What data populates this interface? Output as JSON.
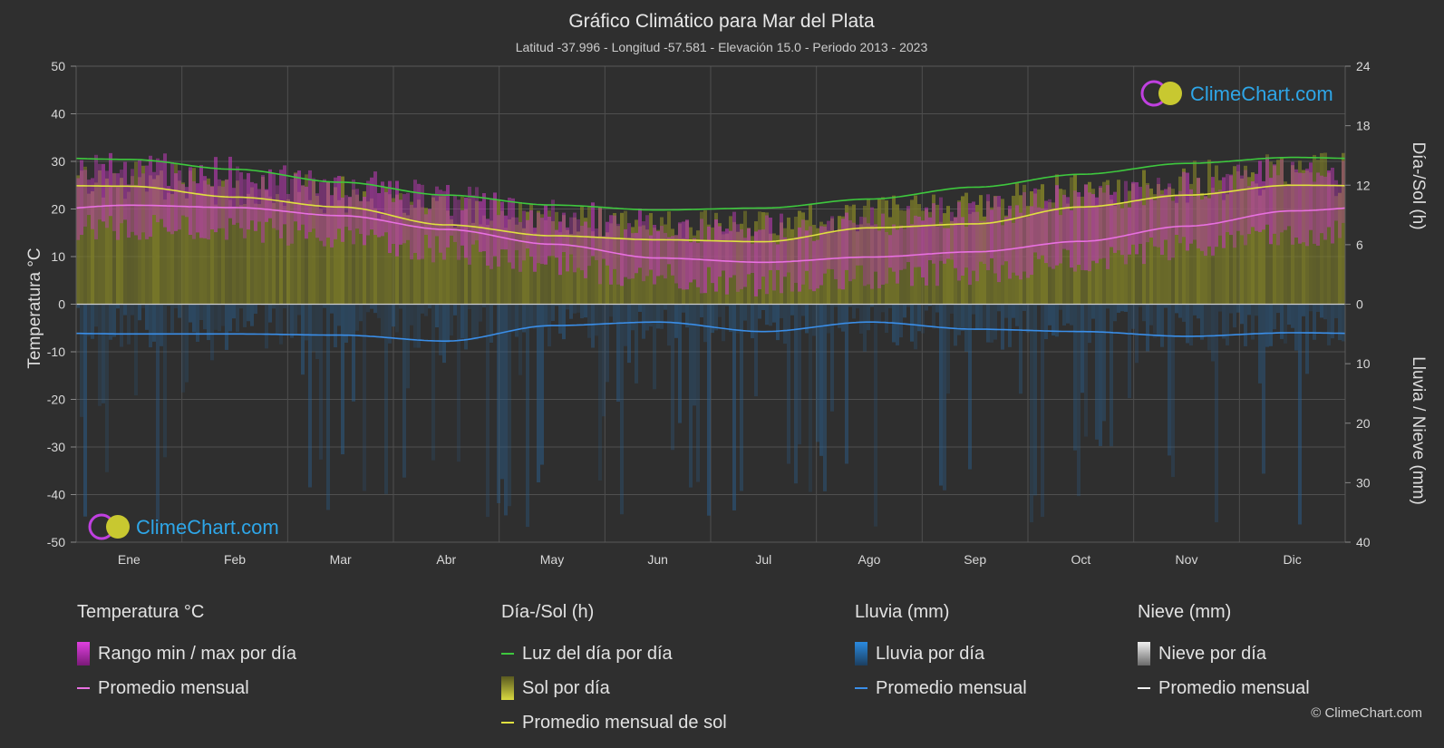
{
  "chart_data": {
    "type": "area",
    "title": "Gráfico Climático para Mar del Plata",
    "subtitle": "Latitud -37.996 - Longitud -57.581 - Elevación 15.0 - Periodo 2013 - 2023",
    "months": [
      "Ene",
      "Feb",
      "Mar",
      "Abr",
      "May",
      "Jun",
      "Jul",
      "Ago",
      "Sep",
      "Oct",
      "Nov",
      "Dic"
    ],
    "y_left": {
      "label": "Temperatura °C",
      "range": [
        -50,
        50
      ],
      "ticks": [
        50,
        40,
        30,
        20,
        10,
        0,
        -10,
        -20,
        -30,
        -40,
        -50
      ]
    },
    "y_right_top": {
      "label": "Día-/Sol (h)",
      "range": [
        0,
        24
      ],
      "ticks": [
        24,
        18,
        12,
        6,
        0
      ]
    },
    "y_right_bottom": {
      "label": "Lluvia / Nieve (mm)",
      "range": [
        0,
        40
      ],
      "ticks": [
        0,
        10,
        20,
        30,
        40
      ]
    },
    "series": [
      {
        "name": "Luz del día por día",
        "axis": "hours",
        "color": "#3ec83e",
        "values": [
          14.6,
          13.6,
          12.3,
          11.0,
          10.0,
          9.5,
          9.7,
          10.6,
          11.8,
          13.1,
          14.2,
          14.8
        ]
      },
      {
        "name": "Promedio mensual de sol",
        "axis": "hours",
        "color": "#e0e040",
        "values": [
          11.9,
          10.8,
          9.8,
          8.0,
          6.9,
          6.5,
          6.3,
          7.7,
          8.1,
          9.8,
          11.0,
          12.0
        ]
      },
      {
        "name": "Sol por día",
        "axis": "hours",
        "color": "#8c8c2a",
        "values": [
          14.0,
          13.0,
          11.8,
          10.3,
          9.2,
          8.6,
          8.8,
          9.8,
          11.2,
          12.5,
          13.6,
          14.2
        ]
      },
      {
        "name": "Promedio mensual",
        "axis": "temp",
        "color": "#e870e0",
        "values": [
          20.8,
          20.3,
          18.6,
          15.7,
          12.6,
          9.7,
          8.8,
          9.9,
          11.0,
          13.2,
          16.4,
          19.6
        ]
      },
      {
        "name": "Rango min / max por día",
        "axis": "temp",
        "color": "#c03ab8",
        "min": [
          16.5,
          16.0,
          14.5,
          11.5,
          8.5,
          5.5,
          4.5,
          5.5,
          7.0,
          9.0,
          12.0,
          15.0
        ],
        "max": [
          28.5,
          27.5,
          25.5,
          22.0,
          19.0,
          16.5,
          16.0,
          17.5,
          19.5,
          22.0,
          25.0,
          28.0
        ]
      },
      {
        "name": "Promedio mensual (lluvia)",
        "axis": "rain",
        "color": "#3a8ee8",
        "values": [
          5.0,
          5.0,
          5.2,
          6.2,
          3.6,
          3.0,
          4.6,
          3.0,
          4.2,
          4.6,
          5.4,
          4.8
        ]
      }
    ]
  },
  "watermark": {
    "text": "ClimeChart.com",
    "color": "#2ea6e8"
  },
  "legend": {
    "temp": {
      "title": "Temperatura °C",
      "range": "Rango min / max por día",
      "mean": "Promedio mensual"
    },
    "sun": {
      "title": "Día-/Sol (h)",
      "daylight": "Luz del día por día",
      "sunshine": "Sol por día",
      "mean": "Promedio mensual de sol"
    },
    "rain": {
      "title": "Lluvia (mm)",
      "daily": "Lluvia por día",
      "mean": "Promedio mensual"
    },
    "snow": {
      "title": "Nieve (mm)",
      "daily": "Nieve por día",
      "mean": "Promedio mensual"
    }
  },
  "copyright": "© ClimeChart.com"
}
